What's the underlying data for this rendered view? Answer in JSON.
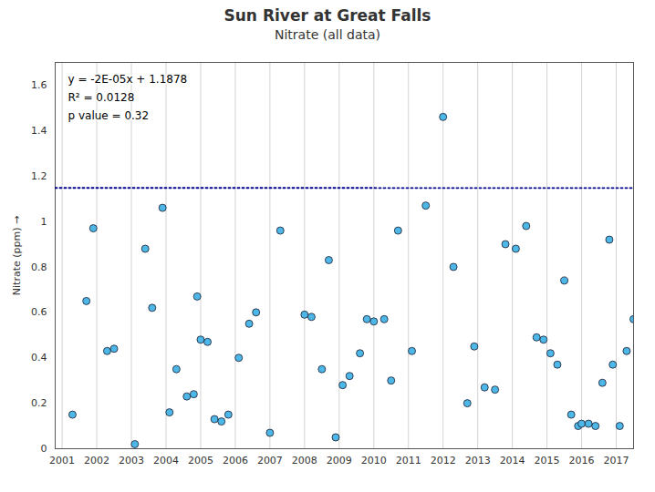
{
  "chart_data": {
    "type": "scatter",
    "title": "Sun River at Great Falls",
    "subtitle": "Nitrate (all data)",
    "ylabel": "Nitrate (ppm)",
    "x": [
      2001.3,
      2001.7,
      2001.9,
      2002.3,
      2002.5,
      2003.1,
      2003.4,
      2003.6,
      2003.9,
      2004.1,
      2004.3,
      2004.6,
      2004.8,
      2004.9,
      2005.0,
      2005.2,
      2005.4,
      2005.6,
      2005.8,
      2006.1,
      2006.4,
      2006.6,
      2007.0,
      2007.3,
      2008.0,
      2008.2,
      2008.5,
      2008.7,
      2008.9,
      2009.1,
      2009.3,
      2009.6,
      2009.8,
      2010.0,
      2010.3,
      2010.5,
      2010.7,
      2011.1,
      2011.5,
      2012.0,
      2012.3,
      2012.7,
      2012.9,
      2013.2,
      2013.5,
      2013.8,
      2014.1,
      2014.4,
      2014.7,
      2014.9,
      2015.1,
      2015.3,
      2015.5,
      2015.7,
      2015.9,
      2016.0,
      2016.2,
      2016.4,
      2016.6,
      2016.8,
      2016.9,
      2017.1,
      2017.3,
      2017.5
    ],
    "values": [
      0.15,
      0.65,
      0.97,
      0.43,
      0.44,
      0.02,
      0.88,
      0.62,
      1.06,
      0.16,
      0.35,
      0.23,
      0.24,
      0.67,
      0.48,
      0.47,
      0.13,
      0.12,
      0.15,
      0.4,
      0.55,
      0.6,
      0.07,
      0.96,
      0.59,
      0.58,
      0.35,
      0.83,
      0.05,
      0.28,
      0.32,
      0.42,
      0.57,
      0.56,
      0.57,
      0.3,
      0.96,
      0.43,
      1.07,
      1.46,
      0.8,
      0.2,
      0.45,
      0.27,
      0.26,
      0.9,
      0.88,
      0.98,
      0.49,
      0.48,
      0.42,
      0.37,
      0.74,
      0.15,
      0.1,
      0.11,
      0.11,
      0.1,
      0.29,
      0.92,
      0.37,
      0.1,
      0.43,
      0.57
    ],
    "color": "#4db8e8",
    "xlim": [
      2000.8,
      2017.5
    ],
    "xticks": [
      2001,
      2002,
      2003,
      2004,
      2005,
      2006,
      2007,
      2008,
      2009,
      2010,
      2011,
      2012,
      2013,
      2014,
      2015,
      2016,
      2017
    ],
    "ylim": [
      0,
      1.7
    ],
    "yticks": [
      0,
      0.2,
      0.4,
      0.6,
      0.8,
      1,
      1.2,
      1.4,
      1.6
    ],
    "grid": "x",
    "trend": {
      "x": [
        2000.8,
        2017.5
      ],
      "values": [
        1.147784,
        1.14745
      ],
      "color": "#00008b",
      "line_style": "dotted"
    },
    "annotations": [
      "y = -2E-05x + 1.1878",
      "R² = 0.0128",
      "p value = 0.32"
    ]
  }
}
